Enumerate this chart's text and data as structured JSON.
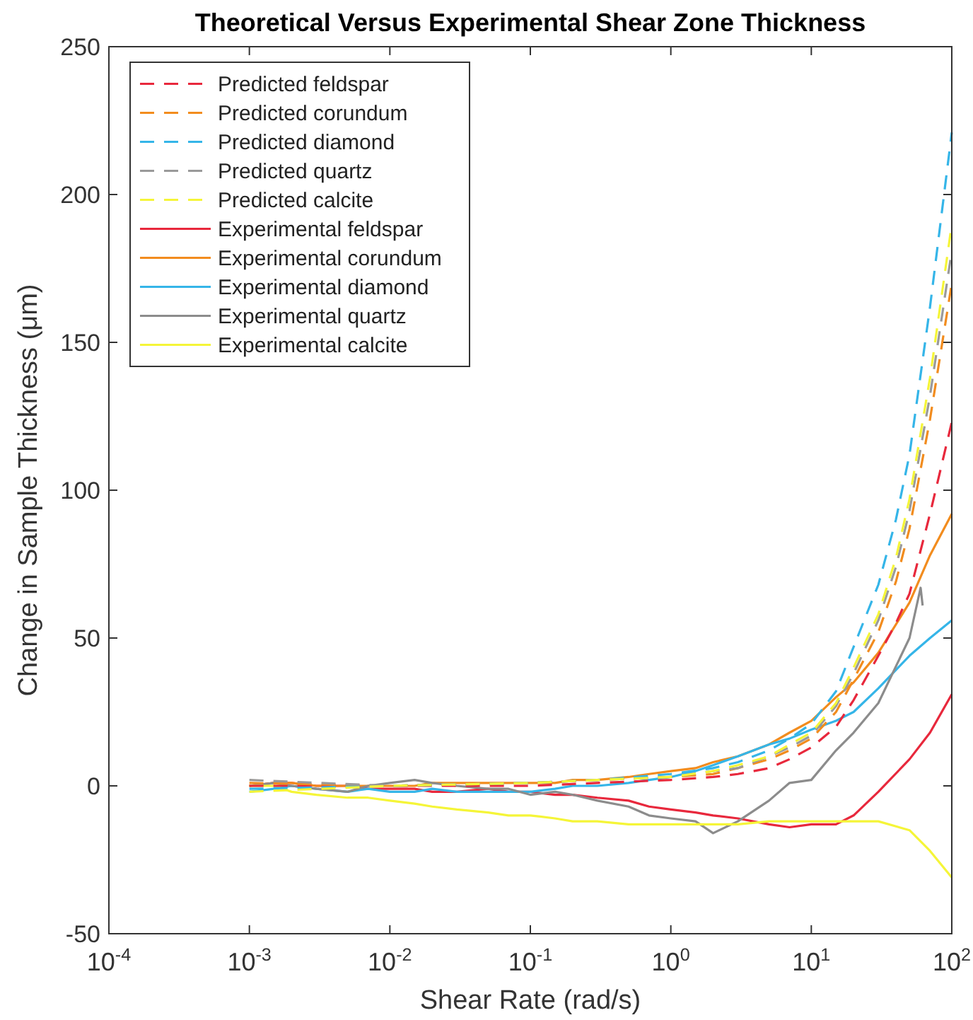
{
  "chart_data": {
    "type": "line",
    "title": "Theoretical Versus Experimental Shear Zone Thickness",
    "xlabel": "Shear Rate (rad/s)",
    "ylabel": "Change in Sample Thickness (μm)",
    "log": "x",
    "grid": false,
    "legend": "top left",
    "xlim": [
      0.0001,
      100
    ],
    "xticks": [
      {
        "value": 0.0001,
        "label": "10$^{-4}$"
      },
      {
        "value": 0.001,
        "label": "10$^{-3}$"
      },
      {
        "value": 0.01,
        "label": "10$^{-2}$"
      },
      {
        "value": 0.1,
        "label": "10$^{-1}$"
      },
      {
        "value": 1,
        "label": "10$^{0}$"
      },
      {
        "value": 10,
        "label": "10$^{1}$"
      },
      {
        "value": 100,
        "label": "10$^{2}$"
      }
    ],
    "ylim": [
      -50,
      250
    ],
    "yticks": [
      -50,
      0,
      50,
      100,
      150,
      200,
      250
    ],
    "x": [
      0.001,
      0.0015,
      0.002,
      0.003,
      0.005,
      0.007,
      0.01,
      0.015,
      0.02,
      0.03,
      0.05,
      0.07,
      0.1,
      0.15,
      0.2,
      0.3,
      0.5,
      0.7,
      1,
      1.5,
      2,
      3,
      5,
      7,
      10,
      15,
      20,
      30,
      50,
      70,
      100
    ],
    "series": [
      {
        "name": "Predicted feldspar",
        "color": "#e8283c",
        "line_style": "dashed",
        "x": [
          0.001,
          0.01,
          0.1,
          0.3,
          1,
          2,
          3,
          5,
          7,
          10,
          15,
          20,
          30,
          40,
          50,
          70,
          100
        ],
        "values": [
          0,
          0,
          0,
          1,
          2,
          3,
          4,
          6,
          9,
          13,
          20,
          29,
          44,
          55,
          65,
          92,
          123
        ]
      },
      {
        "name": "Predicted corundum",
        "color": "#f28c1e",
        "line_style": "dashed",
        "x": [
          0.001,
          0.01,
          0.1,
          0.3,
          1,
          2,
          3,
          5,
          7,
          10,
          15,
          20,
          30,
          40,
          50,
          70,
          100
        ],
        "values": [
          1,
          0,
          1,
          2,
          3,
          4,
          6,
          9,
          12,
          16,
          25,
          36,
          52,
          69,
          87,
          124,
          170
        ]
      },
      {
        "name": "Predicted diamond",
        "color": "#35b5e8",
        "line_style": "dashed",
        "x": [
          0.001,
          0.01,
          0.1,
          0.3,
          1,
          2,
          3,
          5,
          7,
          10,
          15,
          20,
          30,
          40,
          50,
          70,
          100
        ],
        "values": [
          -1,
          0,
          1,
          2,
          4,
          6,
          8,
          12,
          16,
          21,
          32,
          47,
          68,
          90,
          112,
          162,
          221
        ]
      },
      {
        "name": "Predicted quartz",
        "color": "#9a9a9a",
        "line_style": "dashed",
        "x": [
          0.001,
          0.01,
          0.1,
          0.3,
          1,
          2,
          3,
          5,
          7,
          10,
          15,
          20,
          30,
          40,
          50,
          70,
          100
        ],
        "values": [
          2,
          0,
          1,
          2,
          3,
          5,
          6,
          10,
          13,
          17,
          27,
          38,
          56,
          74,
          93,
          132,
          181
        ]
      },
      {
        "name": "Predicted calcite",
        "color": "#f5f538",
        "line_style": "dashed",
        "x": [
          0.001,
          0.01,
          0.1,
          0.3,
          1,
          2,
          3,
          5,
          7,
          10,
          15,
          20,
          30,
          40,
          50,
          70,
          100
        ],
        "values": [
          -2,
          0,
          1,
          2,
          3,
          5,
          7,
          10,
          14,
          18,
          28,
          40,
          58,
          77,
          97,
          138,
          190
        ]
      },
      {
        "name": "Experimental feldspar",
        "color": "#e8283c",
        "line_style": "solid",
        "values": [
          0,
          1,
          1,
          0,
          0,
          -1,
          -1,
          -1,
          -2,
          -2,
          -1,
          -2,
          -2,
          -3,
          -3,
          -4,
          -5,
          -7,
          -8,
          -9,
          -10,
          -11,
          -13,
          -14,
          -13,
          -13,
          -10,
          -2,
          9,
          18,
          31
        ]
      },
      {
        "name": "Experimental corundum",
        "color": "#f28c1e",
        "line_style": "solid",
        "values": [
          0,
          1,
          1,
          0,
          0,
          0,
          0,
          0,
          1,
          1,
          1,
          1,
          1,
          1,
          2,
          2,
          3,
          4,
          5,
          6,
          8,
          10,
          14,
          18,
          22,
          30,
          35,
          45,
          62,
          78,
          92
        ]
      },
      {
        "name": "Experimental diamond",
        "color": "#35b5e8",
        "line_style": "solid",
        "values": [
          -2,
          -1,
          0,
          -1,
          -2,
          -1,
          -2,
          -2,
          -1,
          -2,
          -2,
          -2,
          -2,
          -1,
          0,
          0,
          1,
          2,
          3,
          5,
          7,
          10,
          14,
          16,
          19,
          22,
          25,
          33,
          44,
          50,
          56
        ]
      },
      {
        "name": "Experimental quartz",
        "color": "#8c8c8c",
        "line_style": "solid",
        "x": [
          0.001,
          0.0015,
          0.002,
          0.003,
          0.005,
          0.007,
          0.01,
          0.015,
          0.02,
          0.03,
          0.05,
          0.07,
          0.1,
          0.15,
          0.2,
          0.3,
          0.5,
          0.7,
          1,
          1.5,
          2,
          3,
          5,
          7,
          10,
          15,
          20,
          30,
          50,
          60,
          62
        ],
        "values": [
          0,
          1,
          0,
          -1,
          -2,
          0,
          1,
          2,
          1,
          0,
          -1,
          -1,
          -3,
          -2,
          -3,
          -5,
          -7,
          -10,
          -11,
          -12,
          -16,
          -12,
          -5,
          1,
          2,
          12,
          18,
          28,
          50,
          67,
          61
        ]
      },
      {
        "name": "Experimental calcite",
        "color": "#f5f538",
        "line_style": "solid",
        "values": [
          0,
          0,
          -2,
          -3,
          -4,
          -4,
          -5,
          -6,
          -7,
          -8,
          -9,
          -10,
          -10,
          -11,
          -12,
          -12,
          -13,
          -13,
          -13,
          -13,
          -13,
          -13,
          -12,
          -12,
          -12,
          -12,
          -12,
          -12,
          -15,
          -22,
          -31
        ]
      }
    ]
  }
}
